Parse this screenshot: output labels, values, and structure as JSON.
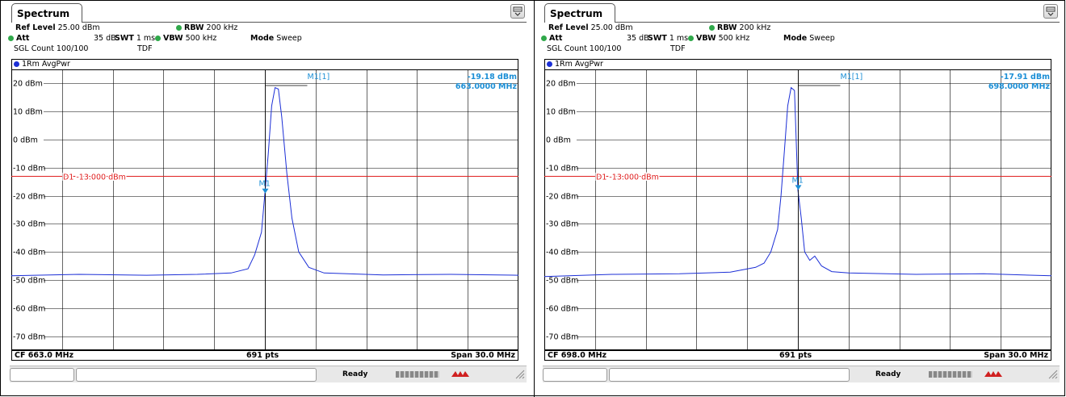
{
  "panels": [
    {
      "tab_label": "Spectrum",
      "ref_level_label": "Ref Level",
      "ref_level_value": "25.00 dBm",
      "att_label": "Att",
      "att_value": "35 dB",
      "swt_label": "SWT",
      "swt_value": "1 ms",
      "rbw_label": "RBW",
      "rbw_value": "200 kHz",
      "vbw_label": "VBW",
      "vbw_value": "500 kHz",
      "mode_label": "Mode",
      "mode_value": "Sweep",
      "sgl_count": "SGL Count 100/100",
      "tdf": "TDF",
      "trace_label": "1Rm AvgPwr",
      "marker_label": "M1[1]",
      "marker_level": "-19.18 dBm",
      "marker_freq": "663.0000 MHz",
      "marker_tag": "M1",
      "display_line_label": "D1  -13.000 dBm",
      "cf_label": "CF 663.0 MHz",
      "pts_label": "691 pts",
      "span_label": "Span 30.0 MHz",
      "status_ready": "Ready"
    },
    {
      "tab_label": "Spectrum",
      "ref_level_label": "Ref Level",
      "ref_level_value": "25.00 dBm",
      "att_label": "Att",
      "att_value": "35 dB",
      "swt_label": "SWT",
      "swt_value": "1 ms",
      "rbw_label": "RBW",
      "rbw_value": "200 kHz",
      "vbw_label": "VBW",
      "vbw_value": "500 kHz",
      "mode_label": "Mode",
      "mode_value": "Sweep",
      "sgl_count": "SGL Count 100/100",
      "tdf": "TDF",
      "trace_label": "1Rm AvgPwr",
      "marker_label": "M1[1]",
      "marker_level": "-17.91 dBm",
      "marker_freq": "698.0000 MHz",
      "marker_tag": "M1",
      "display_line_label": "D1  -13.000 dBm",
      "cf_label": "CF 698.0 MHz",
      "pts_label": "691 pts",
      "span_label": "Span 30.0 MHz",
      "status_ready": "Ready"
    }
  ],
  "chart_data": [
    {
      "type": "line",
      "title": "",
      "ylabel": "dBm",
      "ylim": [
        -75,
        25
      ],
      "xlim": [
        648.0,
        678.0
      ],
      "yticks": [
        "20 dBm",
        "10 dBm",
        "0 dBm",
        "-10 dBm",
        "-20 dBm",
        "-30 dBm",
        "-40 dBm",
        "-50 dBm",
        "-60 dBm",
        "-70 dBm"
      ],
      "display_line": -13.0,
      "marker": {
        "x": 663.0,
        "y": -19.18
      },
      "series": [
        {
          "x": [
            648.0,
            652.0,
            656.0,
            659.0,
            661.0,
            662.0,
            662.4,
            662.8,
            663.0,
            663.2,
            663.4,
            663.6,
            663.8,
            664.0,
            664.3,
            664.6,
            665.0,
            665.6,
            666.5,
            670.0,
            674.0,
            678.0
          ],
          "values": [
            -48.5,
            -48.0,
            -48.3,
            -48.0,
            -47.5,
            -46.0,
            -41.0,
            -33.0,
            -19.2,
            -5.0,
            12.0,
            18.5,
            18.0,
            8.0,
            -12.0,
            -28.0,
            -40.0,
            -45.5,
            -47.5,
            -48.2,
            -48.0,
            -48.3
          ]
        }
      ]
    },
    {
      "type": "line",
      "title": "",
      "ylabel": "dBm",
      "ylim": [
        -75,
        25
      ],
      "xlim": [
        683.0,
        713.0
      ],
      "yticks": [
        "20 dBm",
        "10 dBm",
        "0 dBm",
        "-10 dBm",
        "-20 dBm",
        "-30 dBm",
        "-40 dBm",
        "-50 dBm",
        "-60 dBm",
        "-70 dBm"
      ],
      "display_line": -13.0,
      "marker": {
        "x": 698.0,
        "y": -17.91
      },
      "series": [
        {
          "x": [
            683.0,
            687.0,
            691.0,
            694.0,
            695.5,
            696.0,
            696.4,
            696.8,
            697.0,
            697.2,
            697.4,
            697.6,
            697.8,
            698.0,
            698.2,
            698.4,
            698.7,
            699.0,
            699.4,
            700.0,
            701.0,
            705.0,
            709.0,
            713.0
          ],
          "values": [
            -48.8,
            -48.0,
            -47.8,
            -47.2,
            -45.5,
            -44.0,
            -40.0,
            -32.0,
            -20.0,
            -4.0,
            12.0,
            18.5,
            17.5,
            -17.9,
            -28.0,
            -40.0,
            -43.0,
            -41.5,
            -45.0,
            -47.0,
            -47.5,
            -48.0,
            -47.8,
            -48.5
          ]
        }
      ]
    }
  ]
}
